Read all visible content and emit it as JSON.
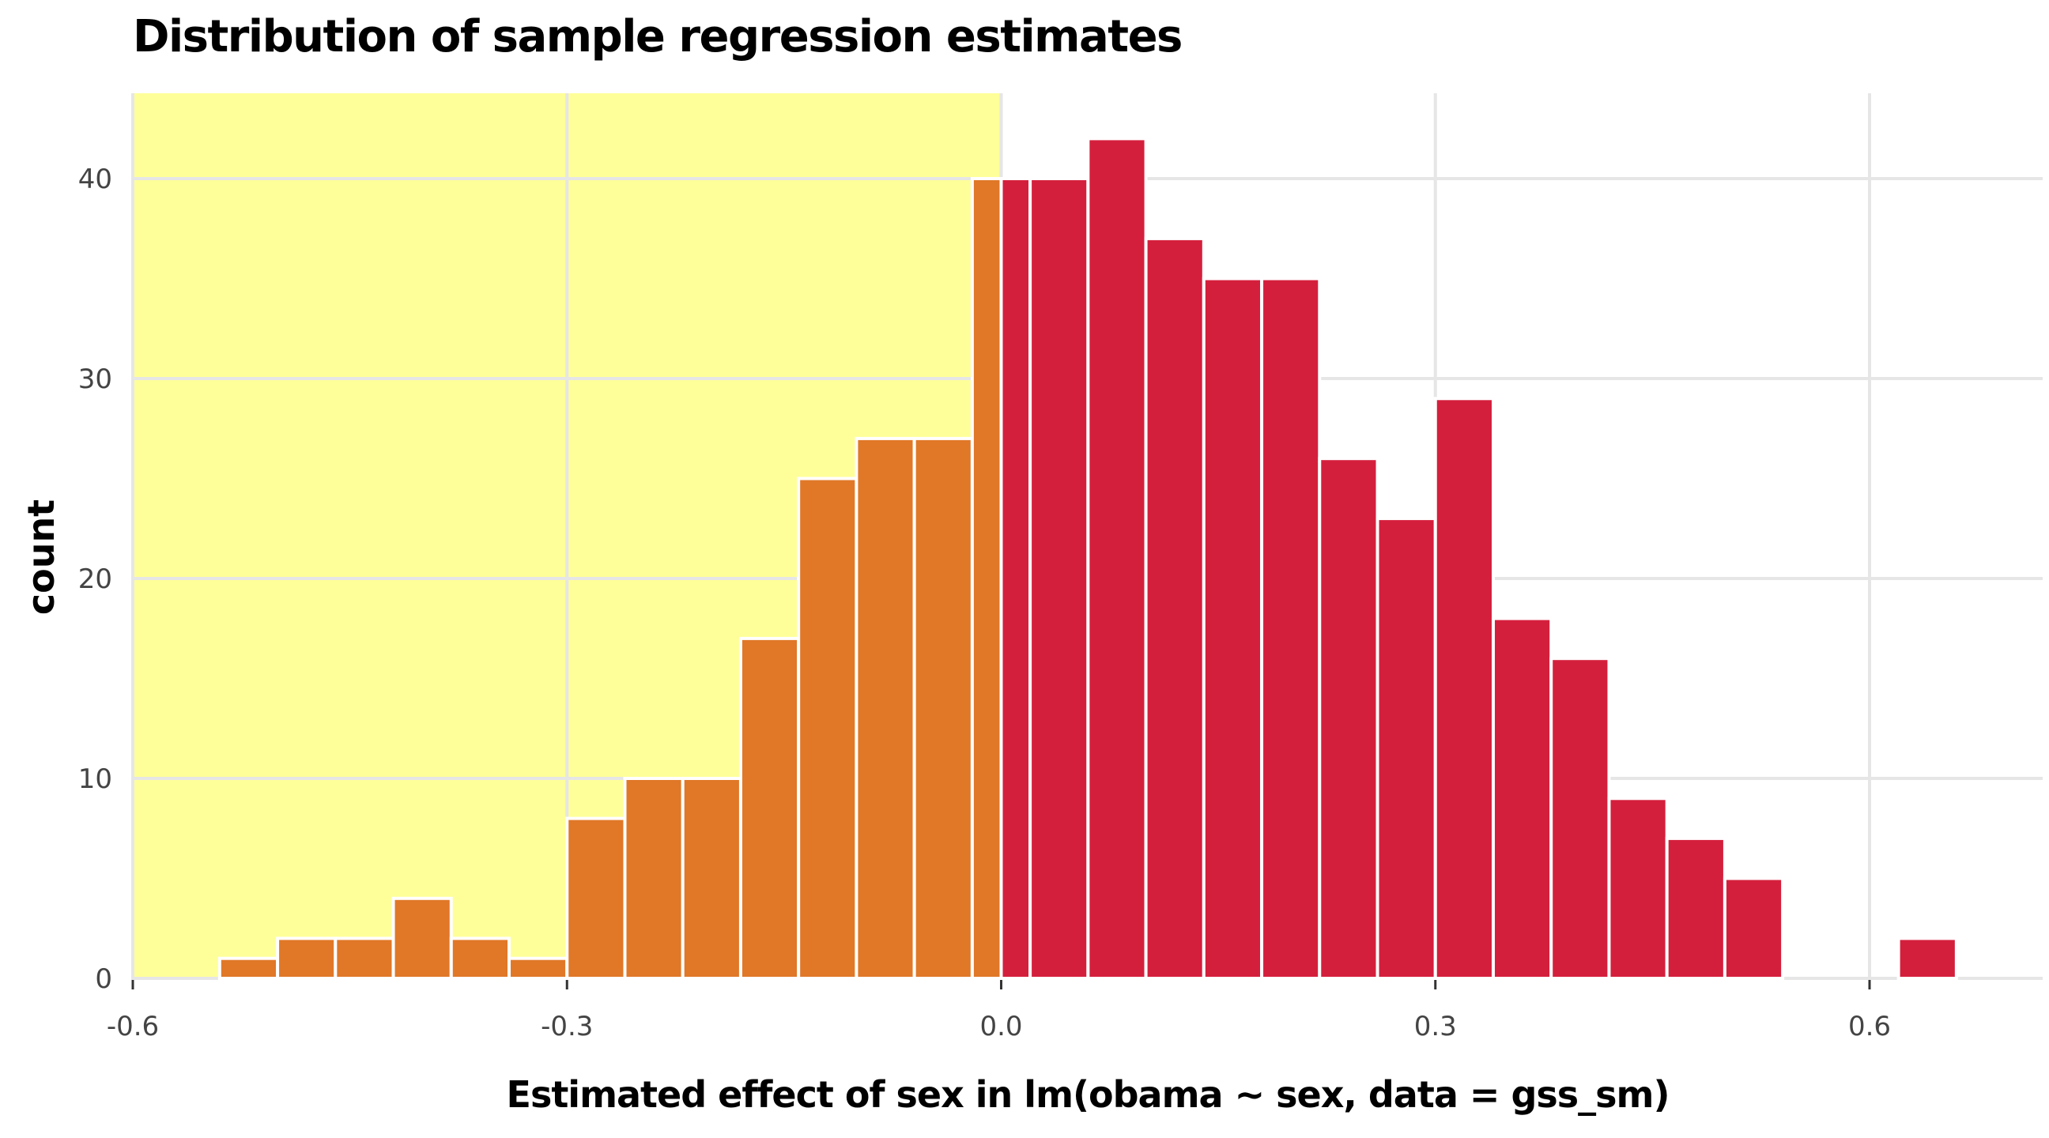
{
  "chart_data": {
    "type": "bar",
    "title": "Distribution of sample regression estimates",
    "xlabel": "Estimated effect of sex in lm(obama ~ sex, data = gss_sm)",
    "ylabel": "count",
    "xlim": [
      -0.6,
      0.7
    ],
    "ylim": [
      0,
      44
    ],
    "x_ticks": [
      -0.6,
      -0.3,
      0.0,
      0.3,
      0.6
    ],
    "x_tick_labels": [
      "-0.6",
      "-0.3",
      "0.0",
      "0.3",
      "0.6"
    ],
    "y_ticks": [
      0,
      10,
      20,
      30,
      40
    ],
    "y_tick_labels": [
      "0",
      "10",
      "20",
      "30",
      "40"
    ],
    "grid": true,
    "highlight_region": {
      "x_from": -0.6,
      "x_to": 0.0,
      "color": "#FFFF99"
    },
    "bin_width": 0.04,
    "bins": [
      {
        "x_min": -0.54,
        "x_max": -0.5,
        "count": 1
      },
      {
        "x_min": -0.5,
        "x_max": -0.46,
        "count": 2
      },
      {
        "x_min": -0.46,
        "x_max": -0.42,
        "count": 2
      },
      {
        "x_min": -0.42,
        "x_max": -0.38,
        "count": 4
      },
      {
        "x_min": -0.38,
        "x_max": -0.34,
        "count": 2
      },
      {
        "x_min": -0.34,
        "x_max": -0.3,
        "count": 1
      },
      {
        "x_min": -0.3,
        "x_max": -0.26,
        "count": 8
      },
      {
        "x_min": -0.26,
        "x_max": -0.22,
        "count": 10
      },
      {
        "x_min": -0.22,
        "x_max": -0.18,
        "count": 10
      },
      {
        "x_min": -0.18,
        "x_max": -0.14,
        "count": 17
      },
      {
        "x_min": -0.14,
        "x_max": -0.1,
        "count": 25
      },
      {
        "x_min": -0.1,
        "x_max": -0.06,
        "count": 27
      },
      {
        "x_min": -0.06,
        "x_max": -0.02,
        "count": 27
      },
      {
        "x_min": -0.02,
        "x_max": 0.0,
        "count": 40
      },
      {
        "x_min": 0.0,
        "x_max": 0.02,
        "count": 40
      },
      {
        "x_min": 0.02,
        "x_max": 0.06,
        "count": 40
      },
      {
        "x_min": 0.06,
        "x_max": 0.1,
        "count": 42
      },
      {
        "x_min": 0.1,
        "x_max": 0.14,
        "count": 37
      },
      {
        "x_min": 0.14,
        "x_max": 0.18,
        "count": 35
      },
      {
        "x_min": 0.18,
        "x_max": 0.22,
        "count": 35
      },
      {
        "x_min": 0.22,
        "x_max": 0.26,
        "count": 26
      },
      {
        "x_min": 0.26,
        "x_max": 0.3,
        "count": 23
      },
      {
        "x_min": 0.3,
        "x_max": 0.34,
        "count": 29
      },
      {
        "x_min": 0.34,
        "x_max": 0.38,
        "count": 18
      },
      {
        "x_min": 0.38,
        "x_max": 0.42,
        "count": 16
      },
      {
        "x_min": 0.42,
        "x_max": 0.46,
        "count": 9
      },
      {
        "x_min": 0.46,
        "x_max": 0.5,
        "count": 7
      },
      {
        "x_min": 0.5,
        "x_max": 0.54,
        "count": 5
      },
      {
        "x_min": 0.54,
        "x_max": 0.58,
        "count": 0
      },
      {
        "x_min": 0.58,
        "x_max": 0.62,
        "count": 0
      },
      {
        "x_min": 0.62,
        "x_max": 0.66,
        "count": 2
      }
    ],
    "colors": {
      "negative": "#E07828",
      "positive": "#D41F3C",
      "grid": "#E6E6E6",
      "baseline": "#E6E6E6",
      "axis_text": "#444444"
    }
  }
}
